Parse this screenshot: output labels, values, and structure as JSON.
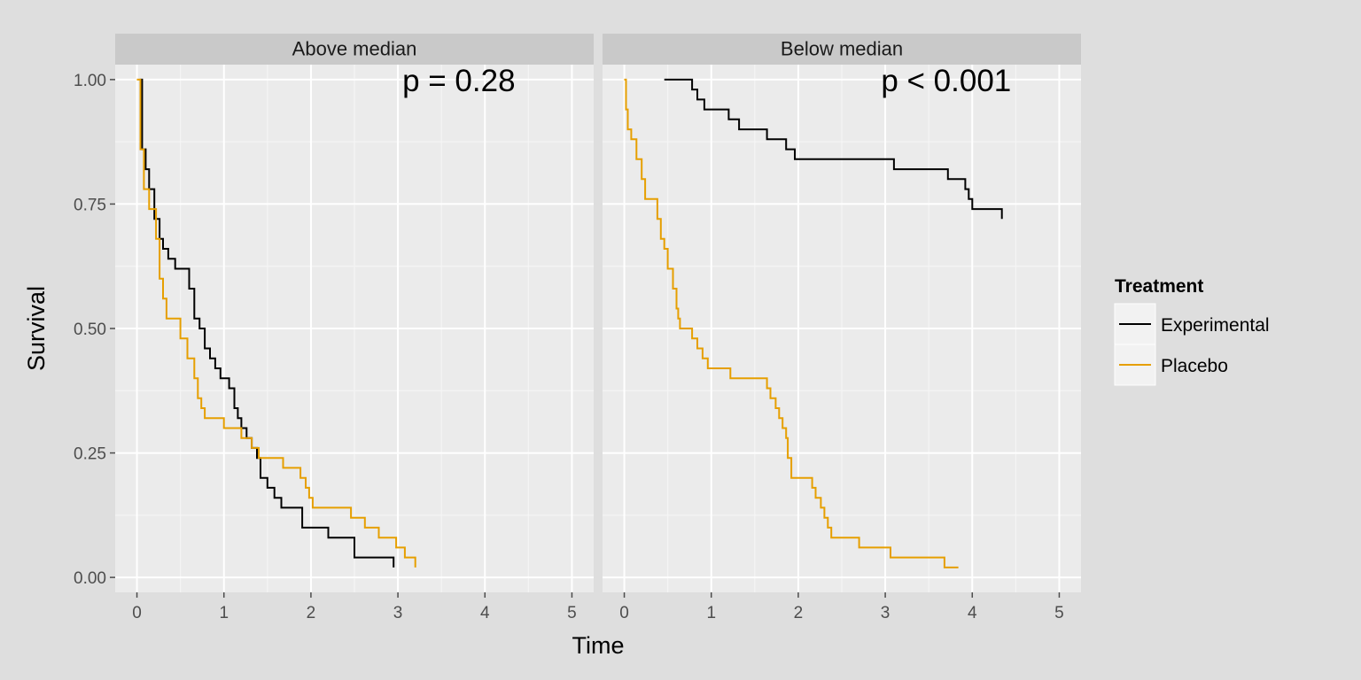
{
  "chart_data": {
    "type": "line",
    "step": true,
    "xlabel": "Time",
    "ylabel": "Survival",
    "xlim": [
      -0.25,
      5.25
    ],
    "ylim": [
      -0.03,
      1.03
    ],
    "x_ticks": [
      0,
      1,
      2,
      3,
      4,
      5
    ],
    "y_ticks": [
      0,
      0.25,
      0.5,
      0.75,
      1
    ],
    "y_tick_labels": [
      "0.00",
      "0.25",
      "0.50",
      "0.75",
      "1.00"
    ],
    "x_tick_labels": [
      "0",
      "1",
      "2",
      "3",
      "4",
      "5"
    ],
    "grid": true,
    "legend": {
      "title": "Treatment",
      "position": "right",
      "entries": [
        {
          "label": "Experimental",
          "color": "#000000"
        },
        {
          "label": "Placebo",
          "color": "#e69f00"
        }
      ]
    },
    "panels": [
      {
        "strip": "Above median",
        "annotation": "p = 0.28",
        "series": [
          {
            "name": "Experimental",
            "color": "#000000",
            "x": [
              0.03,
              0.06,
              0.1,
              0.14,
              0.2,
              0.26,
              0.3,
              0.36,
              0.44,
              0.6,
              0.66,
              0.72,
              0.78,
              0.84,
              0.9,
              0.96,
              1.06,
              1.12,
              1.16,
              1.2,
              1.26,
              1.32,
              1.38,
              1.42,
              1.5,
              1.58,
              1.66,
              1.9,
              2.2,
              2.5,
              2.95
            ],
            "y": [
              1.0,
              0.86,
              0.82,
              0.78,
              0.72,
              0.68,
              0.66,
              0.64,
              0.62,
              0.58,
              0.52,
              0.5,
              0.46,
              0.44,
              0.42,
              0.4,
              0.38,
              0.34,
              0.32,
              0.3,
              0.28,
              0.26,
              0.24,
              0.2,
              0.18,
              0.16,
              0.14,
              0.1,
              0.08,
              0.04,
              0.02
            ]
          },
          {
            "name": "Placebo",
            "color": "#e69f00",
            "x": [
              0.0,
              0.04,
              0.08,
              0.14,
              0.22,
              0.26,
              0.3,
              0.34,
              0.5,
              0.58,
              0.66,
              0.7,
              0.74,
              0.78,
              1.0,
              1.2,
              1.32,
              1.4,
              1.68,
              1.88,
              1.94,
              1.98,
              2.02,
              2.46,
              2.62,
              2.78,
              2.98,
              3.08,
              3.2
            ],
            "y": [
              1.0,
              0.86,
              0.78,
              0.74,
              0.68,
              0.6,
              0.56,
              0.52,
              0.48,
              0.44,
              0.4,
              0.36,
              0.34,
              0.32,
              0.3,
              0.28,
              0.26,
              0.24,
              0.22,
              0.2,
              0.18,
              0.16,
              0.14,
              0.12,
              0.1,
              0.08,
              0.06,
              0.04,
              0.02
            ]
          }
        ]
      },
      {
        "strip": "Below median",
        "annotation": "p < 0.001",
        "series": [
          {
            "name": "Experimental",
            "color": "#000000",
            "x": [
              0.46,
              0.78,
              0.84,
              0.92,
              1.2,
              1.32,
              1.64,
              1.86,
              1.96,
              3.1,
              3.72,
              3.92,
              3.96,
              4.0,
              4.34
            ],
            "y": [
              1.0,
              0.98,
              0.96,
              0.94,
              0.92,
              0.9,
              0.88,
              0.86,
              0.84,
              0.82,
              0.8,
              0.78,
              0.76,
              0.74,
              0.72
            ]
          },
          {
            "name": "Placebo",
            "color": "#e69f00",
            "x": [
              0.0,
              0.02,
              0.04,
              0.08,
              0.14,
              0.2,
              0.24,
              0.38,
              0.42,
              0.46,
              0.5,
              0.56,
              0.6,
              0.62,
              0.64,
              0.78,
              0.84,
              0.9,
              0.96,
              1.0,
              1.22,
              1.64,
              1.68,
              1.74,
              1.78,
              1.82,
              1.86,
              1.88,
              1.92,
              2.16,
              2.2,
              2.26,
              2.3,
              2.34,
              2.38,
              2.7,
              3.06,
              3.68,
              3.84
            ],
            "y": [
              1.0,
              0.94,
              0.9,
              0.88,
              0.84,
              0.8,
              0.76,
              0.72,
              0.68,
              0.66,
              0.62,
              0.58,
              0.54,
              0.52,
              0.5,
              0.48,
              0.46,
              0.44,
              0.42,
              0.42,
              0.4,
              0.38,
              0.36,
              0.34,
              0.32,
              0.3,
              0.28,
              0.24,
              0.2,
              0.18,
              0.16,
              0.14,
              0.12,
              0.1,
              0.08,
              0.06,
              0.04,
              0.02,
              0.02
            ]
          }
        ]
      }
    ]
  }
}
